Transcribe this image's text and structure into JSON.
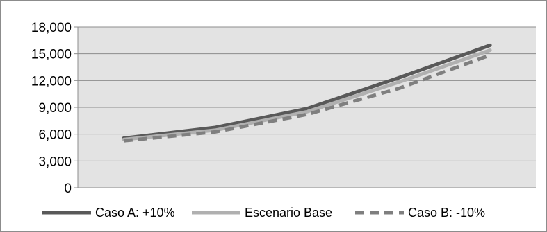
{
  "chart_data": {
    "type": "line",
    "title": "",
    "xlabel": "",
    "ylabel": "",
    "ylim": [
      0,
      18000
    ],
    "yticks": [
      "0",
      "3,000",
      "6,000",
      "9,000",
      "12,000",
      "15,000",
      "18,000"
    ],
    "x": [
      1,
      2,
      3,
      4,
      5
    ],
    "grid": true,
    "legend_position": "bottom",
    "plot_background": "#e3e3e3",
    "series": [
      {
        "name": "Caso A: +10%",
        "values": [
          5550,
          6750,
          8850,
          12300,
          15950
        ],
        "color": "#595959",
        "dash": "solid"
      },
      {
        "name": "Escenario Base",
        "values": [
          5400,
          6450,
          8500,
          11800,
          15400
        ],
        "color": "#b0b0b0",
        "dash": "solid"
      },
      {
        "name": "Caso B: -10%",
        "values": [
          5250,
          6250,
          8200,
          11100,
          14850
        ],
        "color": "#7f7f7f",
        "dash": "dashed"
      }
    ]
  }
}
